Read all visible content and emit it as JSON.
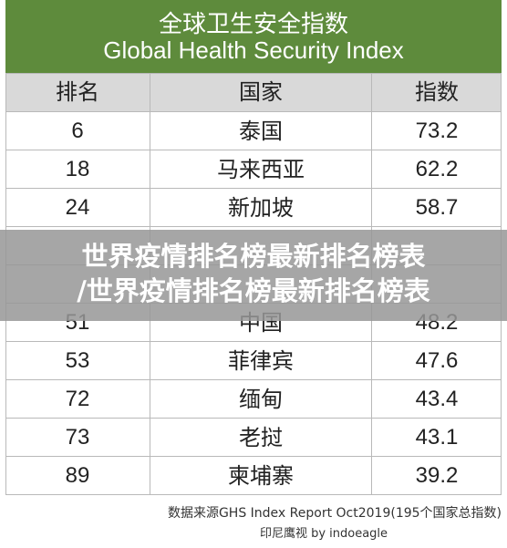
{
  "header": {
    "title_zh": "全球卫生安全指数",
    "title_en": "Global Health Security Index"
  },
  "table": {
    "columns": [
      "排名",
      "国家",
      "指数"
    ],
    "rows": [
      [
        "6",
        "泰国",
        "73.2"
      ],
      [
        "18",
        "马来西亚",
        "62.2"
      ],
      [
        "24",
        "新加坡",
        "58.7"
      ],
      [
        "51",
        "中国",
        "48.2"
      ],
      [
        "53",
        "菲律宾",
        "47.6"
      ],
      [
        "72",
        "缅甸",
        "43.4"
      ],
      [
        "73",
        "老挝",
        "43.1"
      ],
      [
        "89",
        "柬埔寨",
        "39.2"
      ]
    ]
  },
  "banner": {
    "lines": [
      "世界疫情排名榜最新排名榜表",
      "/世界疫情排名榜最新排名榜表"
    ]
  },
  "footer": {
    "source": "数据来源GHS Index Report Oct2019(195个国家总指数)",
    "credit": "印尼鹰视 by indoeagle"
  }
}
